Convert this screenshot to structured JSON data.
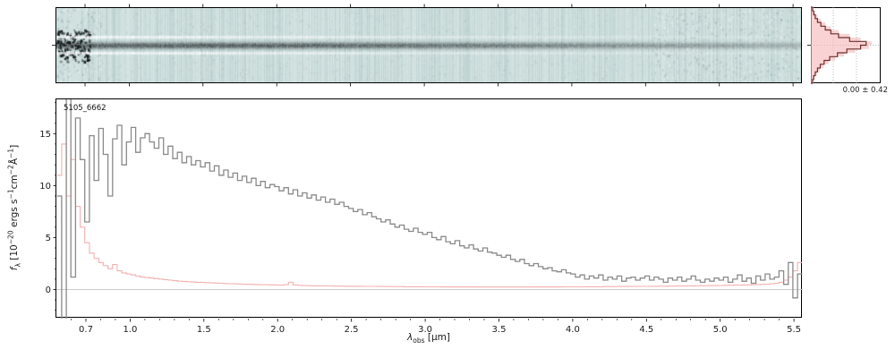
{
  "figure": {
    "background": "#ffffff",
    "axis_color": "#000000"
  },
  "chart_data": {
    "type": "line",
    "title": "5105_6662",
    "xlabel_parts": [
      {
        "t": "i",
        "v": "λ"
      },
      {
        "t": "sub",
        "v": "obs"
      },
      {
        "t": "n",
        "v": " [μm]"
      }
    ],
    "ylabel_parts": [
      {
        "t": "i",
        "v": "f"
      },
      {
        "t": "sub",
        "v": "λ"
      },
      {
        "t": "n",
        "v": " [10"
      },
      {
        "t": "sup",
        "v": "−20"
      },
      {
        "t": "n",
        "v": " ergs s"
      },
      {
        "t": "sup",
        "v": "−1"
      },
      {
        "t": "n",
        "v": "cm"
      },
      {
        "t": "sup",
        "v": "−2"
      },
      {
        "t": "n",
        "v": "Å"
      },
      {
        "t": "sup",
        "v": "−1"
      },
      {
        "t": "n",
        "v": "]"
      }
    ],
    "xlim": [
      0.5,
      5.56
    ],
    "ylim": [
      -2.8,
      18.3
    ],
    "xticks": [
      0.7,
      1.0,
      1.5,
      2.0,
      2.5,
      3.0,
      3.5,
      4.0,
      4.5,
      5.0,
      5.5
    ],
    "xtick_labels": [
      "0.7",
      "1.0",
      "1.5",
      "2.0",
      "2.5",
      "3.0",
      "3.5",
      "4.0",
      "4.5",
      "5.0",
      "5.5"
    ],
    "yticks": [
      0,
      5,
      10,
      15
    ],
    "ytick_labels": [
      "0",
      "5",
      "10",
      "15"
    ],
    "zero_line_color": "#cccccc",
    "x_start": 0.52,
    "x_step": 0.031375,
    "series": [
      {
        "name": "flux",
        "color": "#8a8a8a",
        "values": [
          9.0,
          -3.5,
          18.9,
          1.2,
          16.5,
          12.5,
          6.5,
          14.8,
          10.5,
          15.5,
          13.0,
          9.0,
          14.5,
          15.8,
          12.0,
          14.2,
          15.6,
          13.2,
          14.6,
          15.0,
          14.2,
          13.6,
          14.6,
          13.0,
          13.8,
          12.6,
          13.2,
          12.2,
          12.8,
          12.0,
          12.4,
          11.8,
          12.2,
          11.4,
          11.9,
          11.0,
          11.5,
          10.8,
          11.2,
          10.5,
          10.9,
          10.3,
          10.7,
          10.0,
          10.4,
          9.8,
          10.1,
          9.9,
          9.5,
          9.8,
          9.2,
          9.6,
          9.0,
          9.3,
          8.8,
          9.1,
          8.6,
          8.9,
          8.4,
          8.7,
          8.2,
          8.4,
          8.0,
          7.8,
          7.5,
          7.7,
          7.2,
          7.4,
          7.0,
          6.8,
          6.5,
          6.7,
          6.3,
          6.0,
          6.2,
          5.8,
          5.6,
          5.9,
          5.5,
          5.3,
          5.5,
          5.0,
          4.8,
          5.1,
          4.6,
          4.4,
          4.7,
          4.2,
          4.0,
          4.3,
          3.9,
          3.7,
          4.0,
          3.6,
          3.5,
          3.3,
          3.1,
          3.3,
          2.9,
          2.7,
          2.9,
          2.5,
          2.3,
          2.5,
          2.2,
          2.0,
          2.1,
          1.8,
          1.7,
          1.9,
          1.6,
          1.5,
          1.2,
          1.4,
          1.0,
          1.3,
          1.1,
          1.4,
          0.9,
          1.2,
          1.0,
          1.3,
          0.8,
          1.1,
          1.2,
          0.9,
          1.1,
          1.3,
          0.9,
          1.2,
          1.0,
          0.7,
          1.1,
          0.9,
          1.2,
          0.8,
          1.0,
          1.3,
          0.9,
          0.7,
          1.0,
          0.8,
          1.1,
          0.9,
          1.2,
          0.7,
          1.0,
          1.4,
          0.8,
          1.1,
          0.6,
          1.3,
          0.9,
          1.5,
          1.0,
          1.2,
          1.8,
          0.5,
          2.6,
          -0.8,
          1.5
        ]
      },
      {
        "name": "uncertainty",
        "color": "#f3b0b0",
        "values": [
          11.0,
          14.0,
          9.0,
          12.5,
          8.0,
          6.0,
          4.5,
          3.5,
          3.0,
          2.6,
          2.3,
          2.0,
          2.4,
          1.8,
          1.6,
          1.5,
          1.4,
          1.3,
          1.2,
          1.15,
          1.1,
          1.05,
          1.0,
          0.95,
          0.9,
          0.85,
          0.8,
          0.78,
          0.75,
          0.72,
          0.7,
          0.68,
          0.66,
          0.64,
          0.62,
          0.6,
          0.58,
          0.56,
          0.55,
          0.53,
          0.52,
          0.5,
          0.49,
          0.48,
          0.47,
          0.46,
          0.45,
          0.44,
          0.43,
          0.46,
          0.7,
          0.45,
          0.4,
          0.38,
          0.37,
          0.36,
          0.35,
          0.35,
          0.34,
          0.34,
          0.33,
          0.33,
          0.32,
          0.32,
          0.31,
          0.31,
          0.3,
          0.3,
          0.3,
          0.29,
          0.29,
          0.29,
          0.28,
          0.28,
          0.28,
          0.27,
          0.27,
          0.27,
          0.27,
          0.26,
          0.26,
          0.26,
          0.26,
          0.25,
          0.25,
          0.25,
          0.25,
          0.25,
          0.25,
          0.25,
          0.25,
          0.24,
          0.24,
          0.24,
          0.24,
          0.24,
          0.24,
          0.24,
          0.24,
          0.24,
          0.24,
          0.24,
          0.24,
          0.25,
          0.25,
          0.25,
          0.25,
          0.25,
          0.25,
          0.26,
          0.26,
          0.26,
          0.26,
          0.26,
          0.27,
          0.27,
          0.27,
          0.27,
          0.28,
          0.28,
          0.28,
          0.29,
          0.29,
          0.29,
          0.3,
          0.3,
          0.3,
          0.3,
          0.31,
          0.31,
          0.32,
          0.32,
          0.33,
          0.33,
          0.34,
          0.34,
          0.35,
          0.35,
          0.36,
          0.37,
          0.37,
          0.38,
          0.38,
          0.39,
          0.4,
          0.41,
          0.42,
          0.43,
          0.44,
          0.45,
          0.46,
          0.48,
          0.5,
          0.52,
          0.55,
          0.6,
          0.7,
          0.9,
          1.2,
          1.8,
          2.6
        ]
      }
    ],
    "panel2d": {
      "bg": "#cddfde",
      "trace_color": "#14181c"
    },
    "hist": {
      "stats_label": "0.00 ± 0.42",
      "fill_color": "#f6bcbc",
      "line_color": "#6f2f2f",
      "fill_counts": [
        0.5,
        0.8,
        1.2,
        1.8,
        2.6,
        3.6,
        5,
        7,
        9,
        11,
        10.5,
        8,
        6,
        4.4,
        3.2,
        2.3,
        1.6,
        1.1,
        0.7,
        0.5
      ],
      "outline_counts": [
        0.3,
        0.5,
        0.8,
        1.2,
        1.8,
        2.6,
        3.6,
        5,
        7,
        10,
        9,
        6.5,
        4.8,
        3.4,
        2.4,
        1.7,
        1.2,
        0.8,
        0.5,
        0.3
      ]
    }
  }
}
